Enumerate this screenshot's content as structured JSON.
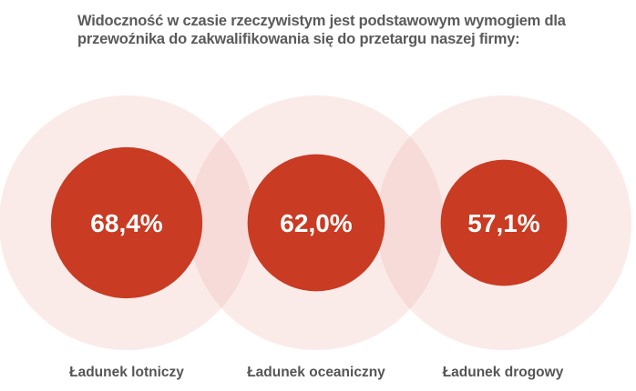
{
  "chart_data": {
    "type": "bubble",
    "title": "Widoczność w czasie rzeczywistym jest podstawowym wymogiem dla przewoźnika do zakwalifikowania się do przetargu naszej firmy:",
    "categories": [
      "Ładunek lotniczy",
      "Ładunek oceaniczny",
      "Ładunek drogowy"
    ],
    "values": [
      68.4,
      62.0,
      57.1
    ],
    "value_labels": [
      "68,4%",
      "62,0%",
      "57,1%"
    ],
    "unit": "%",
    "colors": {
      "inner": "#c93b22",
      "outer": "#f5d9d6",
      "text": "#ffffff",
      "title": "#5a5a5a"
    }
  }
}
